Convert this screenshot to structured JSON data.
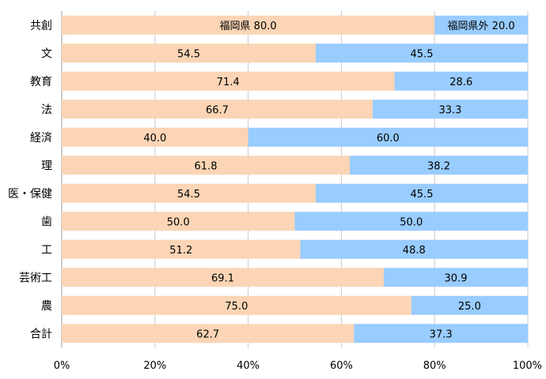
{
  "chart_data": {
    "type": "bar",
    "orientation": "horizontal",
    "stacked": true,
    "percent": true,
    "categories": [
      "共創",
      "文",
      "教育",
      "法",
      "経済",
      "理",
      "医・保健",
      "歯",
      "工",
      "芸術工",
      "農",
      "合計"
    ],
    "series": [
      {
        "name": "福岡県",
        "color": "#fbd5b5",
        "values": [
          80.0,
          54.5,
          71.4,
          66.7,
          40.0,
          61.8,
          54.5,
          50.0,
          51.2,
          69.1,
          75.0,
          62.7
        ],
        "labels": [
          "福岡県 80.0",
          "54.5",
          "71.4",
          "66.7",
          "40.0",
          "61.8",
          "54.5",
          "50.0",
          "51.2",
          "69.1",
          "75.0",
          "62.7"
        ]
      },
      {
        "name": "福岡県外",
        "color": "#99ccff",
        "values": [
          20.0,
          45.5,
          28.6,
          33.3,
          60.0,
          38.2,
          45.5,
          50.0,
          48.8,
          30.9,
          25.0,
          37.3
        ],
        "labels": [
          "福岡県外 20.0",
          "45.5",
          "28.6",
          "33.3",
          "60.0",
          "38.2",
          "45.5",
          "50.0",
          "48.8",
          "30.9",
          "25.0",
          "37.3"
        ]
      }
    ],
    "xlim": [
      0,
      100
    ],
    "xticks": [
      "0%",
      "20%",
      "40%",
      "60%",
      "80%",
      "100%"
    ],
    "grid": true
  }
}
